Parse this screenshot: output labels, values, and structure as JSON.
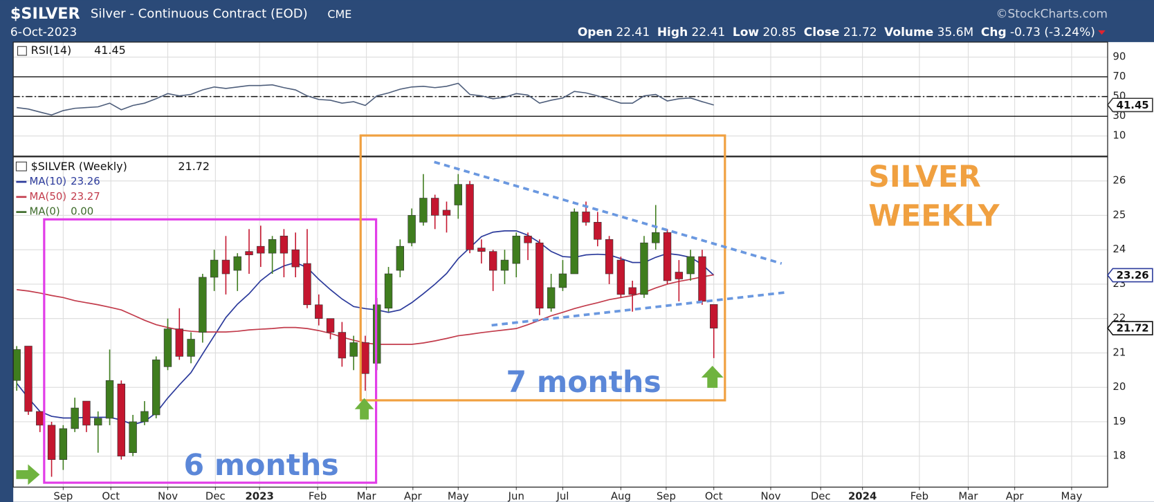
{
  "header": {
    "symbol": "$SILVER",
    "name": "Silver - Continuous Contract (EOD)",
    "exchange": "CME",
    "date": "6-Oct-2023",
    "source": "©StockCharts.com",
    "stats": [
      {
        "label": "Open",
        "value": 22.41
      },
      {
        "label": "High",
        "value": 22.41
      },
      {
        "label": "Low",
        "value": 20.85
      },
      {
        "label": "Close",
        "value": 21.72
      },
      {
        "label": "Volume",
        "value": "35.6M"
      },
      {
        "label": "Chg",
        "value": "-0.73 (-3.24%)"
      }
    ]
  },
  "chart_data": [
    {
      "type": "line",
      "series": [
        {
          "name": "RSI(14)",
          "color": "#4d5d7a",
          "values": [
            38.8,
            37.3,
            34.3,
            31.3,
            35.8,
            38.1,
            38.8,
            39.6,
            43.3,
            36.6,
            41.0,
            43.3,
            47.8,
            53.0,
            50.7,
            52.2,
            56.7,
            59.7,
            58.2,
            59.7,
            61.2,
            61.2,
            61.9,
            59.0,
            56.7,
            50.7,
            47.0,
            46.3,
            43.3,
            44.8,
            41.0,
            50.7,
            53.7,
            57.5,
            59.7,
            60.4,
            59.0,
            60.4,
            63.4,
            52.2,
            50.7,
            47.8,
            49.3,
            53.0,
            51.5,
            43.3,
            46.3,
            48.5,
            55.2,
            53.7,
            50.7,
            47.0,
            43.3,
            43.3,
            50.7,
            52.2,
            45.5,
            47.8,
            48.5,
            44.8,
            41.45
          ]
        }
      ],
      "xlim": [
        -0.3,
        93.9
      ],
      "ylim": [
        -10.4,
        105.2
      ],
      "yticks": [
        10,
        30,
        50,
        70,
        90
      ],
      "levels": [
        {
          "value": 70,
          "style": "solid"
        },
        {
          "value": 50,
          "style": "dashdot"
        },
        {
          "value": 30,
          "style": "solid"
        }
      ],
      "grid": true
    },
    {
      "type": "candlestick",
      "title": "$SILVER (Weekly)",
      "up_color": "#3f7d1e",
      "down_color": "#c4162f",
      "ohlc": [
        {
          "open": 20.2,
          "high": 21.2,
          "low": 19.9,
          "close": 21.1
        },
        {
          "open": 21.2,
          "high": 21.2,
          "low": 19.2,
          "close": 19.3
        },
        {
          "open": 19.3,
          "high": 19.3,
          "low": 18.7,
          "close": 18.9
        },
        {
          "open": 18.9,
          "high": 19.0,
          "low": 17.4,
          "close": 17.9
        },
        {
          "open": 17.9,
          "high": 18.9,
          "low": 17.6,
          "close": 18.8
        },
        {
          "open": 18.8,
          "high": 19.7,
          "low": 18.7,
          "close": 19.4
        },
        {
          "open": 19.6,
          "high": 19.6,
          "low": 18.7,
          "close": 18.9
        },
        {
          "open": 18.9,
          "high": 19.3,
          "low": 18.1,
          "close": 19.1
        },
        {
          "open": 19.1,
          "high": 21.1,
          "low": 18.9,
          "close": 20.2
        },
        {
          "open": 20.1,
          "high": 20.2,
          "low": 17.9,
          "close": 18.0
        },
        {
          "open": 18.1,
          "high": 19.2,
          "low": 18.0,
          "close": 19.0
        },
        {
          "open": 19.0,
          "high": 19.6,
          "low": 18.9,
          "close": 19.3
        },
        {
          "open": 19.2,
          "high": 20.9,
          "low": 19.1,
          "close": 20.8
        },
        {
          "open": 20.6,
          "high": 22.0,
          "low": 20.5,
          "close": 21.7
        },
        {
          "open": 21.7,
          "high": 22.3,
          "low": 20.8,
          "close": 20.9
        },
        {
          "open": 20.9,
          "high": 21.6,
          "low": 20.7,
          "close": 21.4
        },
        {
          "open": 21.6,
          "high": 23.3,
          "low": 21.3,
          "close": 23.2
        },
        {
          "open": 23.2,
          "high": 24.0,
          "low": 22.8,
          "close": 23.7
        },
        {
          "open": 23.7,
          "high": 24.4,
          "low": 22.7,
          "close": 23.3
        },
        {
          "open": 23.4,
          "high": 23.9,
          "low": 22.8,
          "close": 23.8
        },
        {
          "open": 23.95,
          "high": 24.6,
          "low": 23.3,
          "close": 23.85
        },
        {
          "open": 24.1,
          "high": 24.7,
          "low": 23.5,
          "close": 23.9
        },
        {
          "open": 23.9,
          "high": 24.4,
          "low": 23.3,
          "close": 24.3
        },
        {
          "open": 24.4,
          "high": 24.6,
          "low": 23.2,
          "close": 23.9
        },
        {
          "open": 24.0,
          "high": 24.5,
          "low": 23.2,
          "close": 23.5
        },
        {
          "open": 23.6,
          "high": 24.6,
          "low": 22.3,
          "close": 22.4
        },
        {
          "open": 22.4,
          "high": 22.7,
          "low": 21.8,
          "close": 22.0
        },
        {
          "open": 22.0,
          "high": 22.0,
          "low": 21.4,
          "close": 21.6
        },
        {
          "open": 21.6,
          "high": 21.9,
          "low": 20.6,
          "close": 20.85
        },
        {
          "open": 20.9,
          "high": 21.5,
          "low": 20.5,
          "close": 21.3
        },
        {
          "open": 21.3,
          "high": 21.5,
          "low": 19.9,
          "close": 20.4
        },
        {
          "open": 20.7,
          "high": 22.6,
          "low": 20.5,
          "close": 22.4
        },
        {
          "open": 22.3,
          "high": 23.5,
          "low": 22.2,
          "close": 23.3
        },
        {
          "open": 23.4,
          "high": 24.3,
          "low": 23.2,
          "close": 24.1
        },
        {
          "open": 24.2,
          "high": 25.2,
          "low": 24.1,
          "close": 25.0
        },
        {
          "open": 24.8,
          "high": 26.2,
          "low": 24.7,
          "close": 25.5
        },
        {
          "open": 25.5,
          "high": 25.6,
          "low": 24.6,
          "close": 25.0
        },
        {
          "open": 25.15,
          "high": 25.4,
          "low": 24.5,
          "close": 25.0
        },
        {
          "open": 25.3,
          "high": 26.2,
          "low": 24.9,
          "close": 25.9
        },
        {
          "open": 25.9,
          "high": 26.0,
          "low": 23.9,
          "close": 24.0
        },
        {
          "open": 24.05,
          "high": 24.3,
          "low": 23.6,
          "close": 23.95
        },
        {
          "open": 23.95,
          "high": 24.0,
          "low": 22.8,
          "close": 23.4
        },
        {
          "open": 23.4,
          "high": 24.0,
          "low": 23.0,
          "close": 23.7
        },
        {
          "open": 23.6,
          "high": 24.5,
          "low": 23.2,
          "close": 24.4
        },
        {
          "open": 24.4,
          "high": 24.5,
          "low": 23.7,
          "close": 24.2
        },
        {
          "open": 24.2,
          "high": 24.3,
          "low": 22.1,
          "close": 22.3
        },
        {
          "open": 22.3,
          "high": 23.3,
          "low": 22.2,
          "close": 22.9
        },
        {
          "open": 22.9,
          "high": 23.7,
          "low": 22.8,
          "close": 23.3
        },
        {
          "open": 23.3,
          "high": 25.2,
          "low": 23.3,
          "close": 25.1
        },
        {
          "open": 25.1,
          "high": 25.4,
          "low": 24.7,
          "close": 24.8
        },
        {
          "open": 24.8,
          "high": 25.1,
          "low": 24.1,
          "close": 24.3
        },
        {
          "open": 24.3,
          "high": 24.4,
          "low": 23.0,
          "close": 23.3
        },
        {
          "open": 23.7,
          "high": 23.8,
          "low": 22.6,
          "close": 22.7
        },
        {
          "open": 22.9,
          "high": 23.1,
          "low": 22.2,
          "close": 22.7
        },
        {
          "open": 22.7,
          "high": 24.4,
          "low": 22.6,
          "close": 24.2
        },
        {
          "open": 24.2,
          "high": 25.3,
          "low": 24.0,
          "close": 24.5
        },
        {
          "open": 24.5,
          "high": 24.6,
          "low": 23.0,
          "close": 23.1
        },
        {
          "open": 23.35,
          "high": 23.7,
          "low": 22.5,
          "close": 23.15
        },
        {
          "open": 23.3,
          "high": 24.0,
          "low": 23.1,
          "close": 23.8
        },
        {
          "open": 23.8,
          "high": 24.0,
          "low": 22.4,
          "close": 22.5
        },
        {
          "open": 22.41,
          "high": 22.41,
          "low": 20.85,
          "close": 21.72
        }
      ],
      "series": [
        {
          "name": "MA(10)",
          "color": "#2b3a9b",
          "values": [
            20.12,
            19.69,
            19.3,
            19.16,
            19.11,
            19.11,
            19.13,
            19.13,
            19.13,
            19.05,
            18.92,
            19.01,
            19.26,
            19.69,
            20.07,
            20.43,
            20.97,
            21.5,
            22.03,
            22.42,
            22.72,
            23.1,
            23.36,
            23.53,
            23.63,
            23.48,
            23.14,
            22.84,
            22.57,
            22.35,
            22.29,
            22.25,
            22.18,
            22.25,
            22.46,
            22.72,
            23.0,
            23.31,
            23.74,
            24.06,
            24.38,
            24.51,
            24.55,
            24.55,
            24.42,
            24.21,
            23.95,
            23.8,
            23.78,
            23.85,
            23.87,
            23.85,
            23.74,
            23.63,
            23.63,
            23.78,
            23.89,
            23.85,
            23.78,
            23.57,
            23.26
          ]
        },
        {
          "name": "MA(50)",
          "color": "#c23b4b",
          "values": [
            22.84,
            22.8,
            22.74,
            22.67,
            22.61,
            22.52,
            22.46,
            22.4,
            22.33,
            22.25,
            22.1,
            21.95,
            21.82,
            21.74,
            21.67,
            21.63,
            21.61,
            21.61,
            21.61,
            21.63,
            21.67,
            21.69,
            21.71,
            21.74,
            21.74,
            21.71,
            21.65,
            21.57,
            21.46,
            21.37,
            21.29,
            21.25,
            21.25,
            21.25,
            21.25,
            21.29,
            21.35,
            21.42,
            21.5,
            21.54,
            21.59,
            21.63,
            21.67,
            21.71,
            21.82,
            21.95,
            22.08,
            22.18,
            22.29,
            22.38,
            22.46,
            22.55,
            22.61,
            22.67,
            22.76,
            22.89,
            23.0,
            23.08,
            23.14,
            23.21,
            23.27
          ]
        }
      ],
      "extra_legend": {
        "name": "MA(0)",
        "label": "0.00",
        "color": "#3d6b2a"
      },
      "xlim": [
        -0.3,
        93.9
      ],
      "ylim": [
        17.1,
        26.7
      ],
      "yticks": [
        18,
        19,
        20,
        21,
        22,
        23,
        24,
        25,
        26
      ],
      "xticks": [
        {
          "value": 4.0,
          "label": "Sep"
        },
        {
          "value": 8.1,
          "label": "Oct"
        },
        {
          "value": 13.0,
          "label": "Nov"
        },
        {
          "value": 17.1,
          "label": "Dec"
        },
        {
          "value": 20.9,
          "label": "2023"
        },
        {
          "value": 25.9,
          "label": "Feb"
        },
        {
          "value": 30.1,
          "label": "Mar"
        },
        {
          "value": 34.1,
          "label": "Apr"
        },
        {
          "value": 38.0,
          "label": "May"
        },
        {
          "value": 43.0,
          "label": "Jun"
        },
        {
          "value": 47.0,
          "label": "Jul"
        },
        {
          "value": 52.0,
          "label": "Aug"
        },
        {
          "value": 55.9,
          "label": "Sep"
        },
        {
          "value": 60.0,
          "label": "Oct"
        },
        {
          "value": 64.9,
          "label": "Nov"
        },
        {
          "value": 69.2,
          "label": "Dec"
        },
        {
          "value": 72.8,
          "label": "2024"
        },
        {
          "value": 77.7,
          "label": "Feb"
        },
        {
          "value": 81.9,
          "label": "Mar"
        },
        {
          "value": 85.9,
          "label": "Apr"
        },
        {
          "value": 90.8,
          "label": "May"
        }
      ],
      "grid": true,
      "annotations": [
        "6 months",
        "7 months",
        "SILVER",
        "WEEKLY"
      ]
    }
  ]
}
